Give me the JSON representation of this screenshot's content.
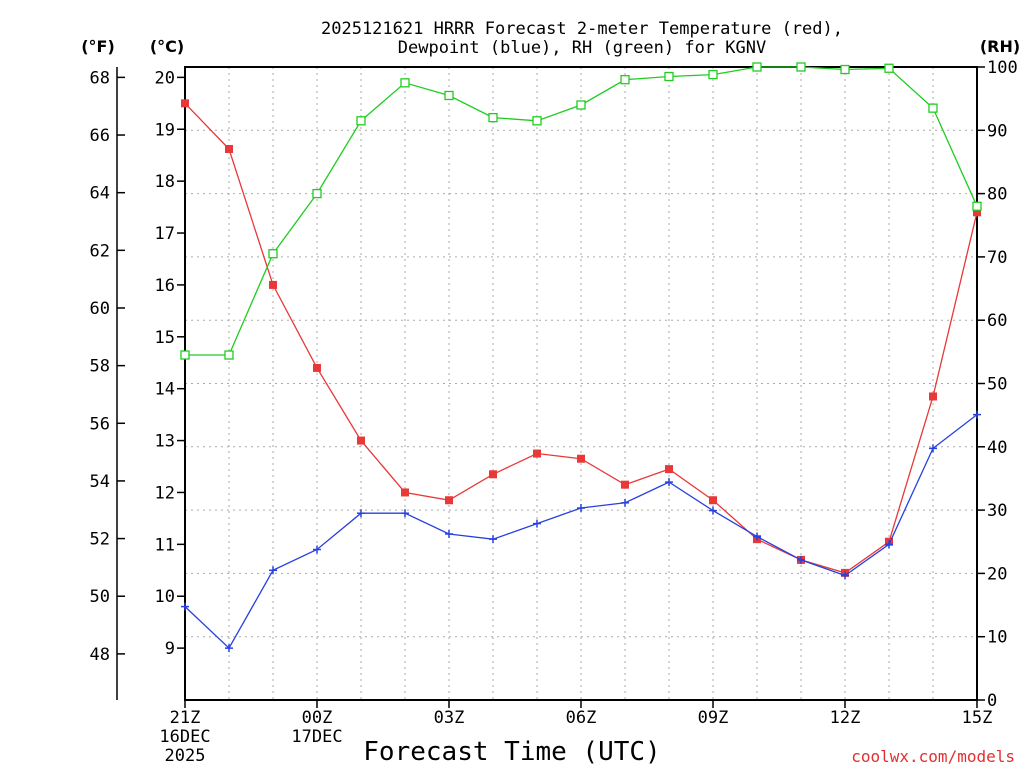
{
  "chart_data": {
    "type": "line",
    "title_line1": "2025121621 HRRR Forecast 2-meter Temperature (red),",
    "title_line2": "Dewpoint (blue), RH (green) for KGNV",
    "xlabel": "Forecast Time (UTC)",
    "credit": "coolwx.com/models",
    "units": {
      "fahrenheit": "(°F)",
      "celsius": "(°C)",
      "rh": "(RH)"
    },
    "x_hours": [
      0,
      1,
      2,
      3,
      4,
      5,
      6,
      7,
      8,
      9,
      10,
      11,
      12,
      13,
      14,
      15,
      16,
      17,
      18
    ],
    "x_ticks": [
      {
        "hour": 0,
        "label": "21Z",
        "line2": "16DEC",
        "line3": "2025"
      },
      {
        "hour": 3,
        "label": "00Z",
        "line2": "17DEC",
        "line3": ""
      },
      {
        "hour": 6,
        "label": "03Z",
        "line2": "",
        "line3": ""
      },
      {
        "hour": 9,
        "label": "06Z",
        "line2": "",
        "line3": ""
      },
      {
        "hour": 12,
        "label": "09Z",
        "line2": "",
        "line3": ""
      },
      {
        "hour": 15,
        "label": "12Z",
        "line2": "",
        "line3": ""
      },
      {
        "hour": 18,
        "label": "15Z",
        "line2": "",
        "line3": ""
      }
    ],
    "celsius_axis": {
      "range": [
        8.0,
        20.2
      ],
      "ticks": [
        9,
        10,
        11,
        12,
        13,
        14,
        15,
        16,
        17,
        18,
        19,
        20
      ]
    },
    "fahrenheit_ticks": [
      48,
      50,
      52,
      54,
      56,
      58,
      60,
      62,
      64,
      66,
      68
    ],
    "rh_axis": {
      "range": [
        0,
        100
      ],
      "ticks": [
        0,
        10,
        20,
        30,
        40,
        50,
        60,
        70,
        80,
        90,
        100
      ]
    },
    "series": [
      {
        "name": "Temperature",
        "units": "C",
        "color": "#e83838",
        "marker": "filled-square",
        "values": [
          19.5,
          18.62,
          16.0,
          14.4,
          13.0,
          12.0,
          11.85,
          12.35,
          12.75,
          12.65,
          12.15,
          12.45,
          11.85,
          11.1,
          10.7,
          10.45,
          11.05,
          13.85,
          17.4
        ]
      },
      {
        "name": "Dewpoint",
        "units": "C",
        "color": "#2840e0",
        "marker": "plus",
        "values": [
          9.8,
          9.0,
          10.5,
          10.9,
          11.6,
          11.6,
          11.2,
          11.1,
          11.4,
          11.7,
          11.8,
          12.2,
          11.65,
          11.15,
          10.7,
          10.4,
          11.0,
          12.85,
          13.5
        ]
      },
      {
        "name": "Relative Humidity",
        "units": "%",
        "axis": "right",
        "color": "#20cc20",
        "marker": "hollow-square",
        "values": [
          54.5,
          54.5,
          70.5,
          80.0,
          91.5,
          97.5,
          95.5,
          92.0,
          91.5,
          94.0,
          98.0,
          98.5,
          98.8,
          100.0,
          100.0,
          99.6,
          99.8,
          93.5,
          78.0
        ]
      }
    ]
  }
}
